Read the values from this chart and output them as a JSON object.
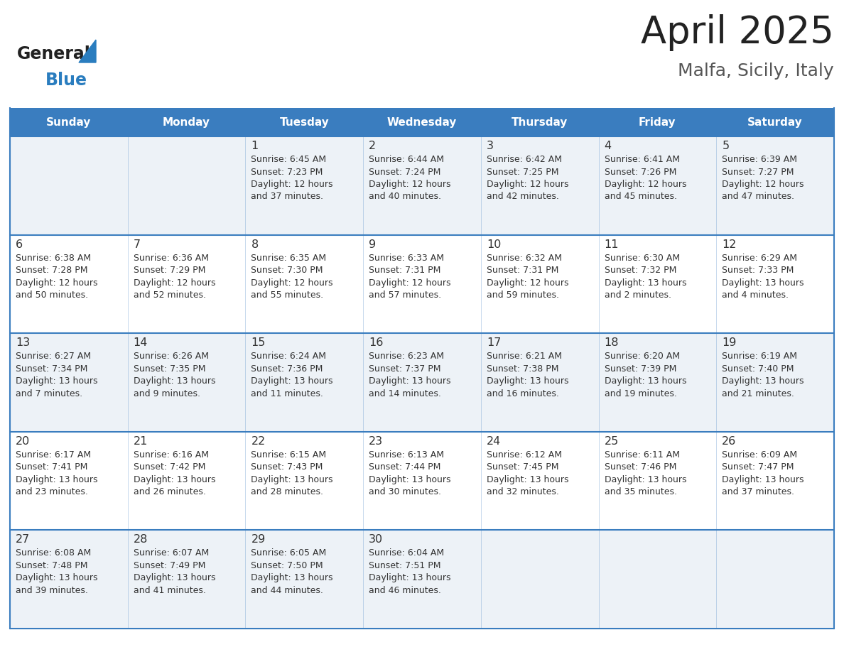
{
  "title": "April 2025",
  "subtitle": "Malfa, Sicily, Italy",
  "header_bg_color": "#3a7dbf",
  "header_text_color": "#ffffff",
  "row_bg_odd": "#edf2f7",
  "row_bg_even": "#ffffff",
  "line_color": "#3a7dbf",
  "text_color": "#333333",
  "days_of_week": [
    "Sunday",
    "Monday",
    "Tuesday",
    "Wednesday",
    "Thursday",
    "Friday",
    "Saturday"
  ],
  "calendar_data": [
    [
      {
        "day": "",
        "info": ""
      },
      {
        "day": "",
        "info": ""
      },
      {
        "day": "1",
        "info": "Sunrise: 6:45 AM\nSunset: 7:23 PM\nDaylight: 12 hours\nand 37 minutes."
      },
      {
        "day": "2",
        "info": "Sunrise: 6:44 AM\nSunset: 7:24 PM\nDaylight: 12 hours\nand 40 minutes."
      },
      {
        "day": "3",
        "info": "Sunrise: 6:42 AM\nSunset: 7:25 PM\nDaylight: 12 hours\nand 42 minutes."
      },
      {
        "day": "4",
        "info": "Sunrise: 6:41 AM\nSunset: 7:26 PM\nDaylight: 12 hours\nand 45 minutes."
      },
      {
        "day": "5",
        "info": "Sunrise: 6:39 AM\nSunset: 7:27 PM\nDaylight: 12 hours\nand 47 minutes."
      }
    ],
    [
      {
        "day": "6",
        "info": "Sunrise: 6:38 AM\nSunset: 7:28 PM\nDaylight: 12 hours\nand 50 minutes."
      },
      {
        "day": "7",
        "info": "Sunrise: 6:36 AM\nSunset: 7:29 PM\nDaylight: 12 hours\nand 52 minutes."
      },
      {
        "day": "8",
        "info": "Sunrise: 6:35 AM\nSunset: 7:30 PM\nDaylight: 12 hours\nand 55 minutes."
      },
      {
        "day": "9",
        "info": "Sunrise: 6:33 AM\nSunset: 7:31 PM\nDaylight: 12 hours\nand 57 minutes."
      },
      {
        "day": "10",
        "info": "Sunrise: 6:32 AM\nSunset: 7:31 PM\nDaylight: 12 hours\nand 59 minutes."
      },
      {
        "day": "11",
        "info": "Sunrise: 6:30 AM\nSunset: 7:32 PM\nDaylight: 13 hours\nand 2 minutes."
      },
      {
        "day": "12",
        "info": "Sunrise: 6:29 AM\nSunset: 7:33 PM\nDaylight: 13 hours\nand 4 minutes."
      }
    ],
    [
      {
        "day": "13",
        "info": "Sunrise: 6:27 AM\nSunset: 7:34 PM\nDaylight: 13 hours\nand 7 minutes."
      },
      {
        "day": "14",
        "info": "Sunrise: 6:26 AM\nSunset: 7:35 PM\nDaylight: 13 hours\nand 9 minutes."
      },
      {
        "day": "15",
        "info": "Sunrise: 6:24 AM\nSunset: 7:36 PM\nDaylight: 13 hours\nand 11 minutes."
      },
      {
        "day": "16",
        "info": "Sunrise: 6:23 AM\nSunset: 7:37 PM\nDaylight: 13 hours\nand 14 minutes."
      },
      {
        "day": "17",
        "info": "Sunrise: 6:21 AM\nSunset: 7:38 PM\nDaylight: 13 hours\nand 16 minutes."
      },
      {
        "day": "18",
        "info": "Sunrise: 6:20 AM\nSunset: 7:39 PM\nDaylight: 13 hours\nand 19 minutes."
      },
      {
        "day": "19",
        "info": "Sunrise: 6:19 AM\nSunset: 7:40 PM\nDaylight: 13 hours\nand 21 minutes."
      }
    ],
    [
      {
        "day": "20",
        "info": "Sunrise: 6:17 AM\nSunset: 7:41 PM\nDaylight: 13 hours\nand 23 minutes."
      },
      {
        "day": "21",
        "info": "Sunrise: 6:16 AM\nSunset: 7:42 PM\nDaylight: 13 hours\nand 26 minutes."
      },
      {
        "day": "22",
        "info": "Sunrise: 6:15 AM\nSunset: 7:43 PM\nDaylight: 13 hours\nand 28 minutes."
      },
      {
        "day": "23",
        "info": "Sunrise: 6:13 AM\nSunset: 7:44 PM\nDaylight: 13 hours\nand 30 minutes."
      },
      {
        "day": "24",
        "info": "Sunrise: 6:12 AM\nSunset: 7:45 PM\nDaylight: 13 hours\nand 32 minutes."
      },
      {
        "day": "25",
        "info": "Sunrise: 6:11 AM\nSunset: 7:46 PM\nDaylight: 13 hours\nand 35 minutes."
      },
      {
        "day": "26",
        "info": "Sunrise: 6:09 AM\nSunset: 7:47 PM\nDaylight: 13 hours\nand 37 minutes."
      }
    ],
    [
      {
        "day": "27",
        "info": "Sunrise: 6:08 AM\nSunset: 7:48 PM\nDaylight: 13 hours\nand 39 minutes."
      },
      {
        "day": "28",
        "info": "Sunrise: 6:07 AM\nSunset: 7:49 PM\nDaylight: 13 hours\nand 41 minutes."
      },
      {
        "day": "29",
        "info": "Sunrise: 6:05 AM\nSunset: 7:50 PM\nDaylight: 13 hours\nand 44 minutes."
      },
      {
        "day": "30",
        "info": "Sunrise: 6:04 AM\nSunset: 7:51 PM\nDaylight: 13 hours\nand 46 minutes."
      },
      {
        "day": "",
        "info": ""
      },
      {
        "day": "",
        "info": ""
      },
      {
        "day": "",
        "info": ""
      }
    ]
  ],
  "logo_general_color": "#222222",
  "logo_blue_color": "#2a7dbf",
  "logo_triangle_color": "#2a7dbf",
  "title_color": "#222222",
  "subtitle_color": "#555555"
}
